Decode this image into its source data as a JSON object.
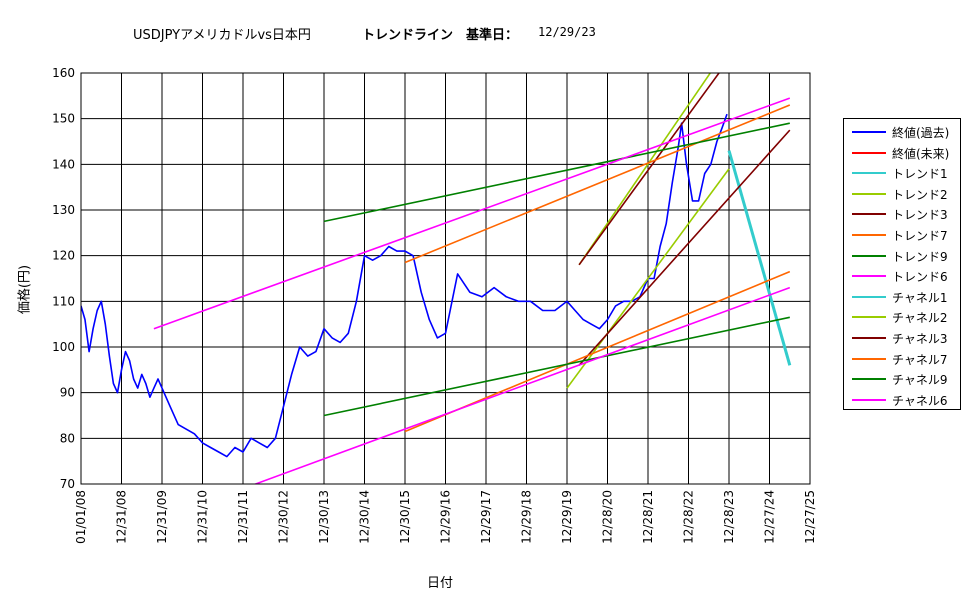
{
  "header": {
    "main_title": "USDJPYアメリカドルvs日本円",
    "trend_title": "トレンドライン　基準日：",
    "base_date": "12/29/23"
  },
  "colors": {
    "close_past": "#0000ff",
    "close_future": "#ff0000",
    "trend1": "#33cccc",
    "trend2": "#99cc00",
    "trend3": "#800000",
    "trend7": "#ff6600",
    "trend9": "#008000",
    "trend6": "#ff00ff"
  },
  "chart_data": {
    "type": "line",
    "title": "USDJPYアメリカドルvs日本円　トレンドライン　基準日：12/29/23",
    "xlabel": "日付",
    "ylabel": "価格(円)",
    "ylim": [
      70,
      160
    ],
    "yticks": [
      70,
      80,
      90,
      100,
      110,
      120,
      130,
      140,
      150,
      160
    ],
    "xticks": [
      "01/01/08",
      "12/31/08",
      "12/31/09",
      "12/31/10",
      "12/31/11",
      "12/30/12",
      "12/30/13",
      "12/30/14",
      "12/30/15",
      "12/29/16",
      "12/29/17",
      "12/29/18",
      "12/29/19",
      "12/28/20",
      "12/28/21",
      "12/28/22",
      "12/28/23",
      "12/27/24",
      "12/27/25"
    ],
    "x_range": [
      2008.0,
      2026.0
    ],
    "grid": true,
    "legend_position": "right",
    "series": [
      {
        "name": "終値(過去)",
        "color_key": "close_past",
        "x": [
          2008.0,
          2008.1,
          2008.2,
          2008.3,
          2008.4,
          2008.5,
          2008.6,
          2008.7,
          2008.8,
          2008.9,
          2009.0,
          2009.1,
          2009.2,
          2009.3,
          2009.4,
          2009.5,
          2009.6,
          2009.7,
          2009.8,
          2009.9,
          2010.0,
          2010.2,
          2010.4,
          2010.6,
          2010.8,
          2011.0,
          2011.2,
          2011.4,
          2011.6,
          2011.8,
          2012.0,
          2012.2,
          2012.4,
          2012.6,
          2012.8,
          2013.0,
          2013.2,
          2013.4,
          2013.6,
          2013.8,
          2014.0,
          2014.2,
          2014.4,
          2014.6,
          2014.8,
          2015.0,
          2015.2,
          2015.4,
          2015.6,
          2015.8,
          2016.0,
          2016.2,
          2016.4,
          2016.6,
          2016.8,
          2017.0,
          2017.3,
          2017.6,
          2017.9,
          2018.2,
          2018.5,
          2018.8,
          2019.1,
          2019.4,
          2019.7,
          2020.0,
          2020.2,
          2020.4,
          2020.6,
          2020.8,
          2021.0,
          2021.2,
          2021.4,
          2021.6,
          2021.8,
          2022.0,
          2022.15,
          2022.3,
          2022.45,
          2022.6,
          2022.75,
          2022.83,
          2022.95,
          2023.1,
          2023.25,
          2023.4,
          2023.55,
          2023.7,
          2023.83,
          2023.95
        ],
        "y": [
          109,
          106,
          99,
          104,
          108,
          110,
          105,
          98,
          92,
          90,
          95,
          99,
          97,
          93,
          91,
          94,
          92,
          89,
          91,
          93,
          91,
          87,
          83,
          82,
          81,
          79,
          78,
          77,
          76,
          78,
          77,
          80,
          79,
          78,
          80,
          87,
          94,
          100,
          98,
          99,
          104,
          102,
          101,
          103,
          110,
          120,
          119,
          120,
          122,
          121,
          121,
          120,
          112,
          106,
          102,
          103,
          116,
          112,
          111,
          113,
          111,
          110,
          110,
          108,
          108,
          110,
          108,
          106,
          105,
          104,
          106,
          109,
          110,
          110,
          111,
          115,
          115,
          122,
          127,
          136,
          144,
          149,
          140,
          132,
          132,
          138,
          140,
          145,
          148,
          151
        ]
      },
      {
        "name": "終値(未来)",
        "color_key": "close_future",
        "x": [],
        "y": []
      },
      {
        "name": "トレンド1",
        "color_key": "trend1",
        "x": [],
        "y": []
      },
      {
        "name": "トレンド2",
        "color_key": "trend2",
        "x": [
          2020.3,
          2024.0
        ],
        "y": [
          118,
          166
        ]
      },
      {
        "name": "トレンド3",
        "color_key": "trend3",
        "x": [
          2020.3,
          2024.0
        ],
        "y": [
          118,
          163
        ]
      },
      {
        "name": "トレンド7",
        "color_key": "trend7",
        "x": [
          2016.0,
          2025.5
        ],
        "y": [
          118.5,
          153
        ]
      },
      {
        "name": "トレンド9",
        "color_key": "trend9",
        "x": [
          2014.0,
          2025.5
        ],
        "y": [
          127.5,
          149
        ]
      },
      {
        "name": "トレンド6",
        "color_key": "trend6",
        "x": [
          2009.8,
          2025.5
        ],
        "y": [
          104,
          154.5
        ]
      },
      {
        "name": "チャネル1",
        "color_key": "trend1",
        "x": [
          2024.0,
          2025.5
        ],
        "y": [
          143,
          96
        ]
      },
      {
        "name": "チャネル2",
        "color_key": "trend2",
        "x": [
          2020.0,
          2024.0
        ],
        "y": [
          91,
          139
        ]
      },
      {
        "name": "チャネル3",
        "color_key": "trend3",
        "x": [
          2020.3,
          2025.5
        ],
        "y": [
          96,
          147.5
        ]
      },
      {
        "name": "チャネル7",
        "color_key": "trend7",
        "x": [
          2016.0,
          2025.5
        ],
        "y": [
          81.5,
          116.5
        ]
      },
      {
        "name": "チャネル9",
        "color_key": "trend9",
        "x": [
          2014.0,
          2025.5
        ],
        "y": [
          85,
          106.5
        ]
      },
      {
        "name": "チャネル6",
        "color_key": "trend6",
        "x": [
          2012.0,
          2025.5
        ],
        "y": [
          69,
          113
        ]
      }
    ]
  }
}
